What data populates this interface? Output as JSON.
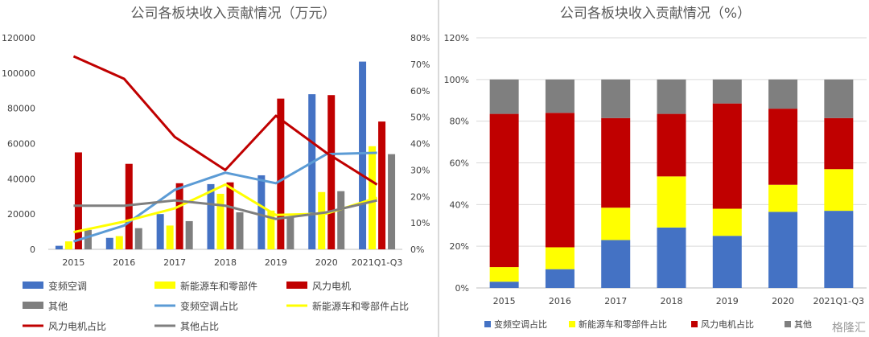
{
  "chart_data": [
    {
      "type": "bar",
      "title": "公司各板块收入贡献情况（万元）",
      "categories": [
        "2015",
        "2016",
        "2017",
        "2018",
        "2019",
        "2020",
        "2021Q1-Q3"
      ],
      "ylim": [
        0,
        120000
      ],
      "y_ticks": [
        "0",
        "20000",
        "40000",
        "60000",
        "80000",
        "100000",
        "120000"
      ],
      "y2lim": [
        0,
        80
      ],
      "y2_ticks": [
        "0%",
        "10%",
        "20%",
        "30%",
        "40%",
        "50%",
        "60%",
        "70%",
        "80%"
      ],
      "grid": false,
      "legend_position": "bottom",
      "series": [
        {
          "name": "变频空调",
          "kind": "bar",
          "axis": "left",
          "color": "#4472c4",
          "values": [
            2000,
            6500,
            20000,
            37000,
            42000,
            88000,
            106500
          ]
        },
        {
          "name": "新能源车和零部件",
          "kind": "bar",
          "axis": "left",
          "color": "#ffff00",
          "values": [
            4500,
            7500,
            13500,
            31500,
            22000,
            32500,
            58500
          ]
        },
        {
          "name": "风力电机",
          "kind": "bar",
          "axis": "left",
          "color": "#c00000",
          "values": [
            55000,
            48500,
            37500,
            38000,
            85500,
            87500,
            72500
          ]
        },
        {
          "name": "其他",
          "kind": "bar",
          "axis": "left",
          "color": "#7f7f7f",
          "values": [
            11000,
            12000,
            16000,
            21000,
            18000,
            33000,
            54000
          ]
        },
        {
          "name": "变频空调占比",
          "kind": "line",
          "axis": "right",
          "color": "#5b9bd5",
          "values": [
            3,
            9,
            22.5,
            29,
            25,
            36,
            36.5
          ]
        },
        {
          "name": "新能源车和零部件占比",
          "kind": "line",
          "axis": "right",
          "color": "#ffff00",
          "values": [
            6.5,
            10.5,
            15.5,
            24.5,
            13,
            13.5,
            19.5
          ]
        },
        {
          "name": "风力电机占比",
          "kind": "line",
          "axis": "right",
          "color": "#c00000",
          "values": [
            73,
            64.5,
            42.5,
            30,
            50.5,
            36.5,
            24.5
          ]
        },
        {
          "name": "其他占比",
          "kind": "line",
          "axis": "right",
          "color": "#7f7f7f",
          "values": [
            16.5,
            16.5,
            18.5,
            16.5,
            11.5,
            14,
            18.5
          ]
        }
      ]
    },
    {
      "type": "bar",
      "stacked": "percent",
      "title": "公司各板块收入贡献情况（%）",
      "categories": [
        "2015",
        "2016",
        "2017",
        "2018",
        "2019",
        "2020",
        "2021Q1-Q3"
      ],
      "ylim": [
        0,
        120
      ],
      "y_ticks": [
        "0%",
        "20%",
        "40%",
        "60%",
        "80%",
        "100%",
        "120%"
      ],
      "grid": true,
      "legend_position": "bottom",
      "series": [
        {
          "name": "变频空调占比",
          "color": "#4472c4",
          "values": [
            3,
            9,
            23,
            29,
            25,
            36.5,
            37
          ]
        },
        {
          "name": "新能源车和零部件占比",
          "color": "#ffff00",
          "values": [
            7,
            10.5,
            15.5,
            24.5,
            13,
            13,
            20
          ]
        },
        {
          "name": "风力电机占比",
          "color": "#c00000",
          "values": [
            73.5,
            64.5,
            43,
            30,
            50.5,
            36.5,
            24.5
          ]
        },
        {
          "name": "其他",
          "color": "#7f7f7f",
          "values": [
            16.5,
            16,
            18.5,
            16.5,
            11.5,
            14,
            18.5
          ]
        }
      ]
    }
  ],
  "watermark": "格隆汇"
}
